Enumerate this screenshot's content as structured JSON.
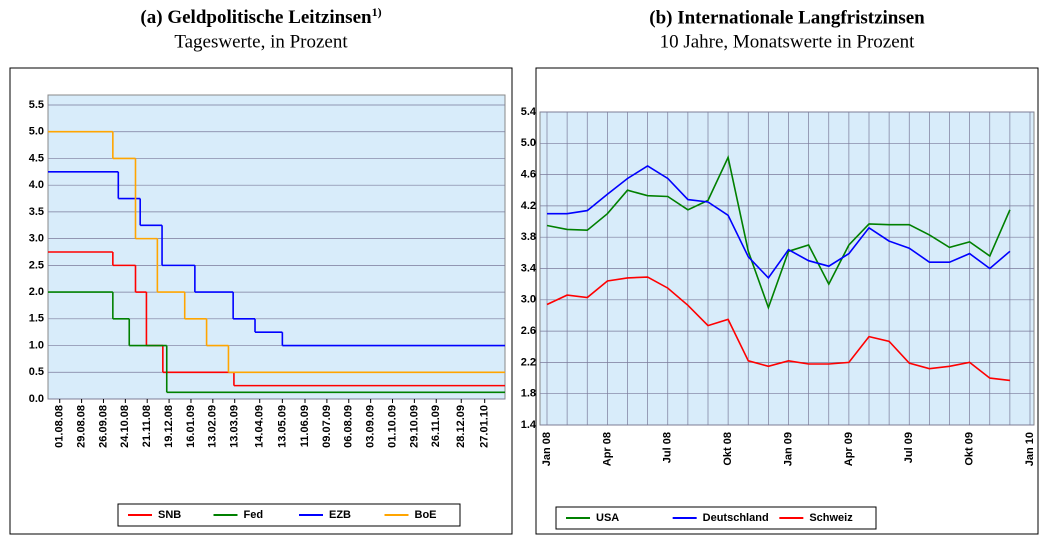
{
  "chart_data": [
    {
      "type": "line",
      "step": true,
      "title": "(a) Geldpolitische Leitzinsen",
      "title_superscript": "1)",
      "subtitle": "Tageswerte, in Prozent",
      "xlim": [
        "17.07.08",
        "22.02.10"
      ],
      "xticks": [
        "01.08.08",
        "29.08.08",
        "26.09.08",
        "24.10.08",
        "21.11.08",
        "19.12.08",
        "16.01.09",
        "13.02.09",
        "13.03.09",
        "14.04.09",
        "13.05.09",
        "11.06.09",
        "09.07.09",
        "06.08.09",
        "03.09.09",
        "01.10.09",
        "29.10.09",
        "26.11.09",
        "28.12.09",
        "27.01.10"
      ],
      "ylim": [
        0,
        5.5
      ],
      "yticks": [
        {
          "value": 0,
          "label": "0.0"
        },
        0.5,
        {
          "value": 1,
          "label": "1.0"
        },
        1.5,
        {
          "value": 2,
          "label": "2.0"
        },
        2.5,
        {
          "value": 3,
          "label": "3.0"
        },
        3.5,
        {
          "value": 4,
          "label": "4.0"
        },
        4.5,
        {
          "value": 5,
          "label": "5.0"
        },
        5.5
      ],
      "grid": "y",
      "series": [
        {
          "name": "SNB",
          "color": "#ff0000",
          "x": [
            "01.08.08",
            "08.10.08",
            "06.11.08",
            "20.11.08",
            "11.12.08",
            "12.03.09"
          ],
          "values": [
            2.75,
            2.5,
            2.0,
            1.0,
            0.5,
            0.25
          ]
        },
        {
          "name": "Fed",
          "color": "#008000",
          "x": [
            "01.08.08",
            "08.10.08",
            "29.10.08",
            "16.12.08"
          ],
          "values": [
            2.0,
            1.5,
            1.0,
            0.125
          ]
        },
        {
          "name": "EZB",
          "color": "#0000ff",
          "x": [
            "01.08.08",
            "15.10.08",
            "12.11.08",
            "10.12.08",
            "21.01.09",
            "11.03.09",
            "08.04.09",
            "13.05.09"
          ],
          "values": [
            4.25,
            3.75,
            3.25,
            2.5,
            2.0,
            1.5,
            1.25,
            1.0
          ]
        },
        {
          "name": "BoE",
          "color": "#ffa500",
          "x": [
            "01.08.08",
            "08.10.08",
            "06.11.08",
            "04.12.08",
            "08.01.09",
            "05.02.09",
            "05.03.09"
          ],
          "values": [
            5.0,
            4.5,
            3.0,
            2.0,
            1.5,
            1.0,
            0.5
          ]
        }
      ]
    },
    {
      "type": "line",
      "title": "(b) Internationale Langfristzinsen",
      "subtitle": "10 Jahre, Monatswerte in Prozent",
      "categories": [
        "Jan 08",
        null,
        null,
        "Apr 08",
        null,
        null,
        "Jul 08",
        null,
        null,
        "Okt 08",
        null,
        null,
        "Jan 09",
        null,
        null,
        "Apr 09",
        null,
        null,
        "Jul 09",
        null,
        null,
        "Okt 09",
        null,
        null,
        "Jan 10"
      ],
      "ylim": [
        1.4,
        5.4
      ],
      "yticks": [
        1.4,
        1.8,
        2.2,
        2.6,
        {
          "value": 3,
          "label": "3.0"
        },
        3.4,
        3.8,
        4.2,
        4.6,
        {
          "value": 5,
          "label": "5.0"
        },
        5.4
      ],
      "grid": "both",
      "series": [
        {
          "name": "USA",
          "color": "#008000",
          "values": [
            3.95,
            3.9,
            3.89,
            4.1,
            4.4,
            4.33,
            4.32,
            4.15,
            4.27,
            4.82,
            3.62,
            2.9,
            3.62,
            3.7,
            3.2,
            3.7,
            3.97,
            3.96,
            3.96,
            3.83,
            3.67,
            3.74,
            3.56,
            4.15,
            null
          ]
        },
        {
          "name": "Deutschland",
          "color": "#0000ff",
          "values": [
            4.1,
            4.1,
            4.14,
            4.35,
            4.55,
            4.71,
            4.55,
            4.28,
            4.25,
            4.08,
            3.55,
            3.28,
            3.64,
            3.5,
            3.43,
            3.59,
            3.92,
            3.75,
            3.66,
            3.48,
            3.48,
            3.59,
            3.4,
            3.62,
            null
          ]
        },
        {
          "name": "Schweiz",
          "color": "#ff0000",
          "values": [
            2.94,
            3.06,
            3.03,
            3.24,
            3.28,
            3.29,
            3.15,
            2.93,
            2.67,
            2.75,
            2.22,
            2.15,
            2.22,
            2.18,
            2.18,
            2.2,
            2.53,
            2.47,
            2.19,
            2.12,
            2.15,
            2.2,
            2.0,
            1.97,
            null
          ]
        }
      ]
    }
  ]
}
